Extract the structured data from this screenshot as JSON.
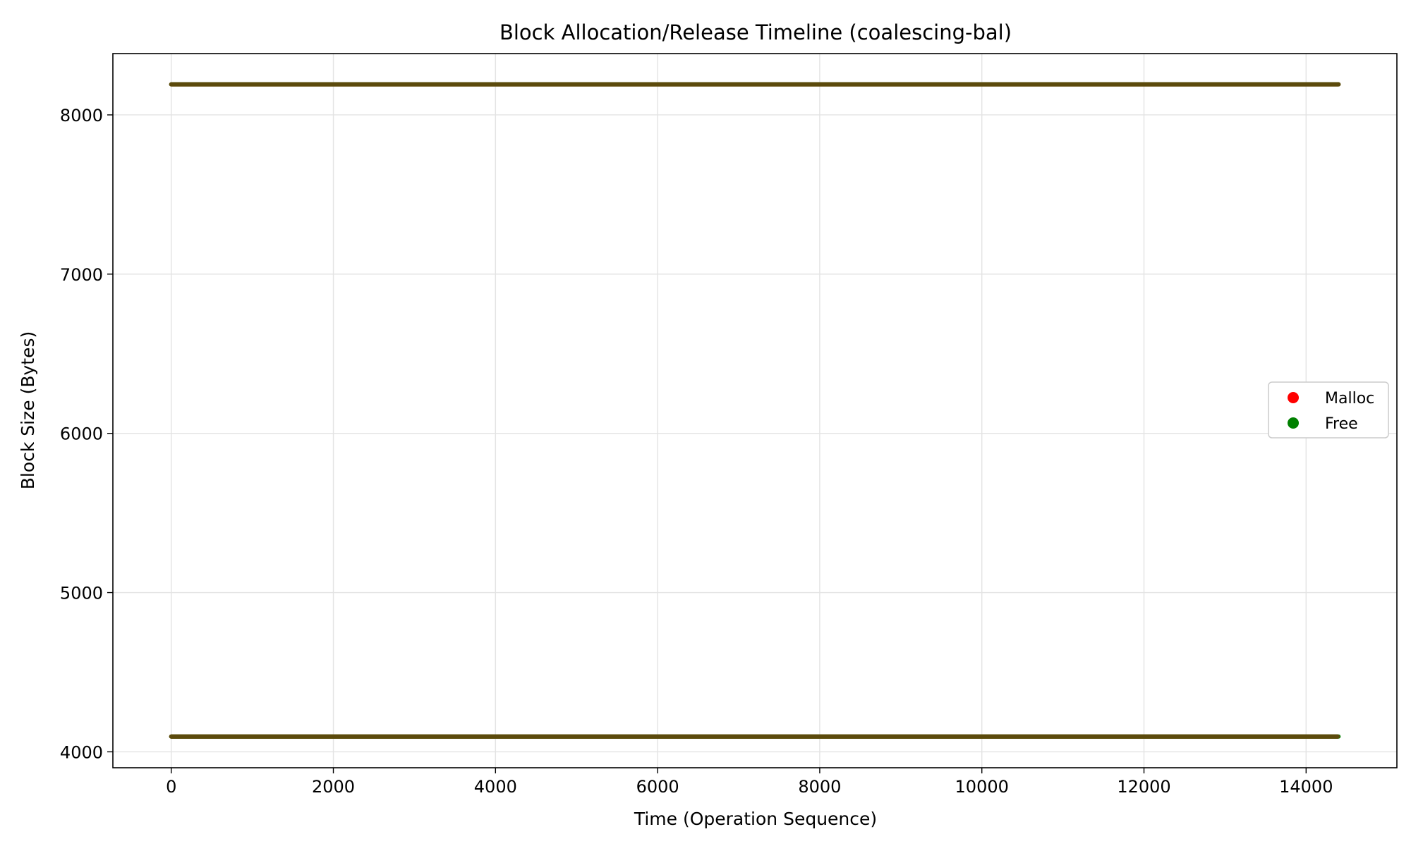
{
  "chart_data": {
    "type": "scatter",
    "title": "Block Allocation/Release Timeline (coalescing-bal)",
    "xlabel": "Time (Operation Sequence)",
    "ylabel": "Block Size (Bytes)",
    "xlim": [
      -720,
      15120
    ],
    "ylim": [
      3900,
      8385
    ],
    "xticks": [
      0,
      2000,
      4000,
      6000,
      8000,
      10000,
      12000,
      14000
    ],
    "yticks": [
      4000,
      5000,
      6000,
      7000,
      8000
    ],
    "grid": true,
    "legend_position": "center-right",
    "series": [
      {
        "name": "Malloc",
        "color": "#ff0000",
        "segments": [
          {
            "y": 8192,
            "x_start": 0,
            "x_end": 14400
          },
          {
            "y": 4096,
            "x_start": 0,
            "x_end": 14390
          }
        ]
      },
      {
        "name": "Free",
        "color": "#008000",
        "segments": [
          {
            "y": 8192,
            "x_start": 0,
            "x_end": 14400
          },
          {
            "y": 4096,
            "x_start": 0,
            "x_end": 14400
          }
        ]
      }
    ],
    "overlap_color": "#5c4a0c"
  }
}
